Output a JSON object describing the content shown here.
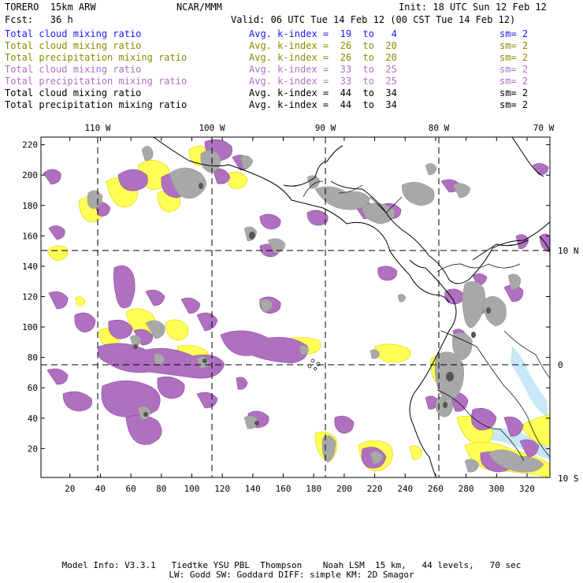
{
  "header": {
    "model": "TORERO  15km ARW",
    "center": "NCAR/MMM",
    "init": "Init: 18 UTC Sun 12 Feb 12",
    "fcst": "Fcst:   36 h",
    "valid": "Valid: 06 UTC Tue 14 Feb 12 (00 CST Tue 14 Feb 12)"
  },
  "legend": [
    {
      "field": "Total cloud mixing ratio",
      "kindex": "Avg. k-index =  19  to   4",
      "sm": "sm= 2",
      "color": "#1a1aff"
    },
    {
      "field": "Total cloud mixing ratio",
      "kindex": "Avg. k-index =  26  to  20",
      "sm": "sm= 2",
      "color": "#8a8a00"
    },
    {
      "field": "Total precipitation mixing ratio",
      "kindex": "Avg. k-index =  26  to  20",
      "sm": "sm= 2",
      "color": "#8a8a00"
    },
    {
      "field": "Total cloud mixing ratio",
      "kindex": "Avg. k-index =  33  to  25",
      "sm": "sm= 2",
      "color": "#b070c0"
    },
    {
      "field": "Total precipitation mixing ratio",
      "kindex": "Avg. k-index =  33  to  25",
      "sm": "sm= 2",
      "color": "#b070c0"
    },
    {
      "field": "Total cloud mixing ratio",
      "kindex": "Avg. k-index =  44  to  34",
      "sm": "sm= 2",
      "color": "#000000"
    },
    {
      "field": "Total precipitation mixing ratio",
      "kindex": "Avg. k-index =  44  to  34",
      "sm": "sm= 2",
      "color": "#000000"
    }
  ],
  "map": {
    "lon_labels": [
      "110 W",
      "100 W",
      "90 W",
      "80 W",
      "70 W"
    ],
    "lat_labels": [
      "10 N",
      "0",
      "10 S"
    ],
    "y_ticks": [
      "220",
      "200",
      "180",
      "160",
      "140",
      "120",
      "100",
      "80",
      "60",
      "40",
      "20"
    ],
    "x_ticks": [
      "20",
      "40",
      "60",
      "80",
      "100",
      "120",
      "140",
      "160",
      "180",
      "200",
      "220",
      "240",
      "260",
      "280",
      "300",
      "320"
    ],
    "x_range": [
      1,
      335
    ],
    "y_range": [
      1,
      225
    ],
    "colors": {
      "yellow": "#ffff55",
      "purple": "#b070c0",
      "gray": "#a8a8a8",
      "darkgray": "#666666",
      "lightblue": "#c8e8f8"
    }
  },
  "footer": {
    "line1": "Model Info: V3.3.1   Tiedtke YSU PBL  Thompson    Noah LSM  15 km,   44 levels,   70 sec",
    "line2": "LW: Godd SW: Goddard DIFF: simple KM: 2D Smagor"
  }
}
